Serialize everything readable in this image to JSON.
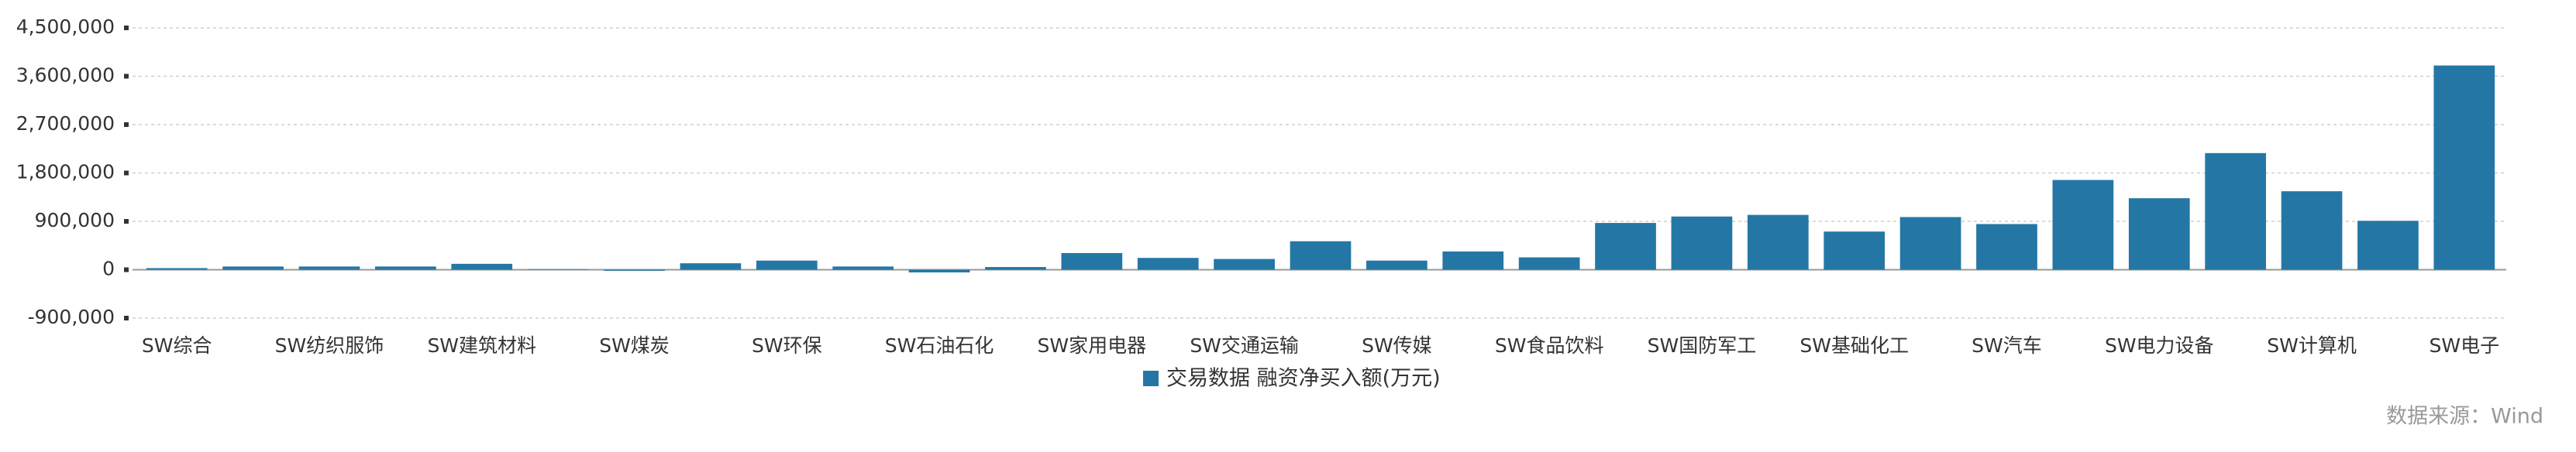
{
  "chart_data": {
    "type": "bar",
    "categories": [
      "SW综合",
      null,
      "SW纺织服饰",
      null,
      "SW建筑材料",
      null,
      "SW煤炭",
      null,
      "SW环保",
      null,
      "SW石油石化",
      null,
      "SW家用电器",
      null,
      "SW交通运输",
      null,
      "SW传媒",
      null,
      "SW食品饮料",
      null,
      "SW国防军工",
      null,
      "SW基础化工",
      null,
      "SW汽车",
      null,
      "SW电力设备",
      null,
      "SW计算机",
      null,
      "SW电子"
    ],
    "series": [
      {
        "name": "交易数据 融资净买入额(万元)",
        "color": "#2477a5",
        "values": [
          30000,
          60000,
          60000,
          60000,
          110000,
          10000,
          -20000,
          120000,
          170000,
          60000,
          -50000,
          50000,
          310000,
          220000,
          200000,
          530000,
          170000,
          340000,
          230000,
          870000,
          990000,
          1020000,
          710000,
          980000,
          850000,
          1670000,
          1330000,
          2170000,
          1460000,
          910000,
          3800000
        ]
      }
    ],
    "ylim": [
      -900000,
      4500000
    ],
    "yticks": [
      {
        "value": -900000,
        "label": "-900,000"
      },
      0,
      {
        "value": 900000,
        "label": "900,000"
      },
      {
        "value": 1800000,
        "label": "1,800,000"
      },
      {
        "value": 2700000,
        "label": "2,700,000"
      },
      {
        "value": 3600000,
        "label": "3,600,000"
      },
      {
        "value": 4500000,
        "label": "4,500,000"
      }
    ],
    "grid": true,
    "source": "数据来源：Wind"
  }
}
